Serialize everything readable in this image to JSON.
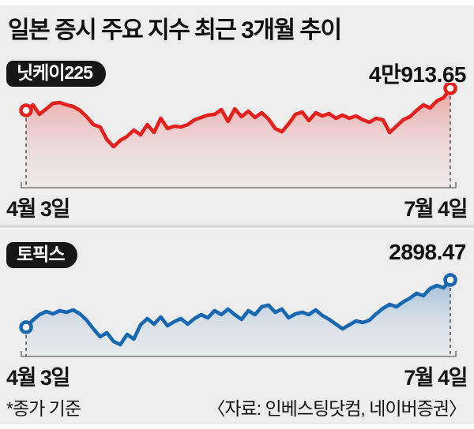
{
  "title": "일본 증시 주요 지수 최근 3개월 추이",
  "footer": {
    "note": "*종가 기준",
    "source": "〈자료: 인베스팅닷컴, 네이버증권〉"
  },
  "colors": {
    "nikkei_line": "#e4211c",
    "topix_line": "#1767b1",
    "badge_bg": "#171717",
    "dashed_guide": "#555555",
    "axis": "#777777",
    "background": "#ededed"
  },
  "chart_data": [
    {
      "type": "area",
      "title": "닛케이225",
      "value_label": "4만913.65",
      "last_value": 40913.65,
      "x_start_label": "4월 3일",
      "x_end_label": "7월 4일",
      "color": "#e4211c",
      "grid": false,
      "legend": "badge-top-left",
      "ylim": [
        36733,
        40913.65
      ],
      "values": [
        39332,
        39727,
        39049,
        39445,
        39840,
        39897,
        39727,
        39614,
        39332,
        38880,
        38315,
        38145,
        37241,
        36733,
        37185,
        37467,
        37919,
        37580,
        38315,
        37750,
        38767,
        38032,
        38202,
        38145,
        38315,
        38654,
        38823,
        38993,
        39049,
        39388,
        38541,
        39445,
        38880,
        39276,
        38823,
        39162,
        38710,
        38032,
        37806,
        38371,
        39049,
        39219,
        38598,
        39162,
        38936,
        39106,
        38767,
        38993,
        38767,
        38936,
        38654,
        38484,
        38767,
        38654,
        37750,
        38202,
        38654,
        38880,
        39332,
        39727,
        39501,
        40010,
        40236,
        40913.65
      ]
    },
    {
      "type": "area",
      "title": "토픽스",
      "value_label": "2898.47",
      "last_value": 2898.47,
      "x_start_label": "4월 3일",
      "x_end_label": "7월 4일",
      "color": "#1767b1",
      "grid": false,
      "legend": "badge-top-left",
      "ylim": [
        2636.1,
        2898.47
      ],
      "values": [
        2706.5,
        2735.3,
        2757.7,
        2770.5,
        2760.9,
        2773.7,
        2767.3,
        2776.9,
        2760.9,
        2735.3,
        2700.1,
        2668.1,
        2684.1,
        2648.9,
        2636.1,
        2677.7,
        2658.5,
        2716.1,
        2741.7,
        2719.3,
        2748.1,
        2712.9,
        2728.9,
        2741.7,
        2719.3,
        2741.7,
        2757.7,
        2744.9,
        2773.7,
        2757.7,
        2780.1,
        2757.7,
        2738.5,
        2773.7,
        2757.7,
        2789.7,
        2796.1,
        2767.3,
        2780.1,
        2744.9,
        2760.9,
        2767.3,
        2757.7,
        2776.9,
        2754.5,
        2738.5,
        2719.3,
        2700.1,
        2716.1,
        2732.1,
        2725.7,
        2735.3,
        2760.9,
        2783.3,
        2799.3,
        2789.7,
        2808.9,
        2824.9,
        2844.1,
        2834.5,
        2863.3,
        2876.1,
        2866.5,
        2898.47
      ]
    }
  ]
}
